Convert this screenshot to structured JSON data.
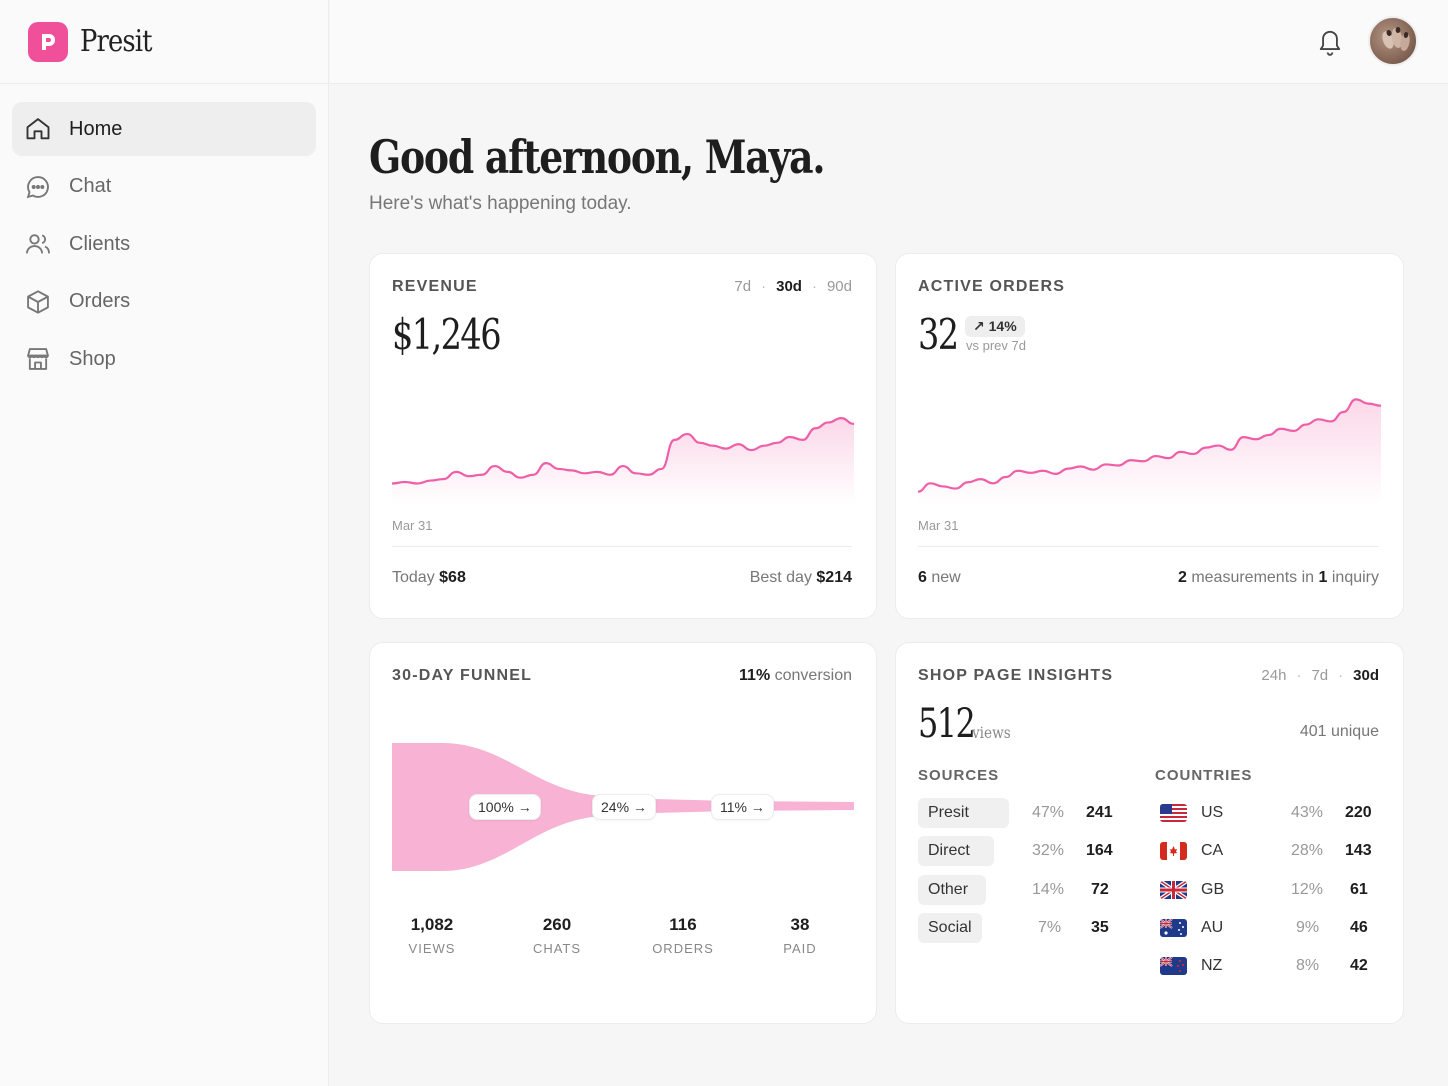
{
  "app": {
    "name": "Presit"
  },
  "nav": {
    "items": [
      {
        "label": "Home",
        "icon": "home-icon",
        "active": true
      },
      {
        "label": "Chat",
        "icon": "chat-icon"
      },
      {
        "label": "Clients",
        "icon": "users-icon"
      },
      {
        "label": "Orders",
        "icon": "box-icon"
      },
      {
        "label": "Shop",
        "icon": "store-icon"
      }
    ]
  },
  "header": {
    "greeting": "Good afternoon, Maya.",
    "subtitle": "Here's what's happening today."
  },
  "revenue": {
    "title": "REVENUE",
    "ranges": [
      "7d",
      "30d",
      "90d"
    ],
    "selected_range": "30d",
    "value": "$1,246",
    "start_label": "Mar 31",
    "today_label": "Today",
    "today_value": "$68",
    "best_label": "Best day",
    "best_value": "$214"
  },
  "orders": {
    "title": "ACTIVE ORDERS",
    "value": "32",
    "delta": "14%",
    "delta_caption": "vs prev 7d",
    "start_label": "Mar 31",
    "new_count": "6",
    "new_label": "new",
    "measurements_count": "2",
    "measurements_label": "measurements in",
    "inquiry_count": "1",
    "inquiry_label": "inquiry"
  },
  "funnel": {
    "title": "30-DAY FUNNEL",
    "conversion_value": "11%",
    "conversion_label": "conversion",
    "steps": [
      {
        "label": "100% →"
      },
      {
        "label": "24% →"
      },
      {
        "label": "11% →"
      }
    ],
    "stats": [
      {
        "value": "1,082",
        "label": "VIEWS"
      },
      {
        "value": "260",
        "label": "CHATS"
      },
      {
        "value": "116",
        "label": "ORDERS"
      },
      {
        "value": "38",
        "label": "PAID"
      }
    ]
  },
  "insights": {
    "title": "SHOP PAGE INSIGHTS",
    "ranges": [
      "24h",
      "7d",
      "30d"
    ],
    "selected_range": "30d",
    "views": "512",
    "views_label": "views",
    "unique": "401 unique",
    "sources_title": "SOURCES",
    "countries_title": "COUNTRIES",
    "sources": [
      {
        "name": "Presit",
        "pct": "47%",
        "count": "241"
      },
      {
        "name": "Direct",
        "pct": "32%",
        "count": "164"
      },
      {
        "name": "Other",
        "pct": "14%",
        "count": "72"
      },
      {
        "name": "Social",
        "pct": "7%",
        "count": "35"
      }
    ],
    "countries": [
      {
        "code": "US",
        "pct": "43%",
        "count": "220"
      },
      {
        "code": "CA",
        "pct": "28%",
        "count": "143"
      },
      {
        "code": "GB",
        "pct": "12%",
        "count": "61"
      },
      {
        "code": "AU",
        "pct": "9%",
        "count": "46"
      },
      {
        "code": "NZ",
        "pct": "8%",
        "count": "42"
      }
    ]
  },
  "colors": {
    "accent": "#f0509a",
    "line": "#ee5fa8",
    "fill": "#fbd3e6",
    "funnel": "#f7b2d4"
  },
  "chart_data": [
    {
      "type": "area",
      "name": "revenue-trend",
      "x_start_label": "Mar 31",
      "values": [
        10,
        11,
        10,
        12,
        13,
        18,
        15,
        16,
        22,
        18,
        14,
        16,
        24,
        20,
        19,
        17,
        18,
        16,
        22,
        17,
        16,
        20,
        40,
        44,
        38,
        36,
        34,
        37,
        33,
        36,
        38,
        42,
        40,
        48,
        52,
        55,
        51
      ]
    },
    {
      "type": "area",
      "name": "active-orders-trend",
      "x_start_label": "Mar 31",
      "values": [
        6,
        14,
        11,
        9,
        15,
        18,
        14,
        20,
        26,
        24,
        26,
        23,
        28,
        30,
        27,
        32,
        31,
        36,
        35,
        40,
        38,
        44,
        42,
        48,
        50,
        46,
        58,
        56,
        60,
        66,
        64,
        70,
        75,
        73,
        82,
        94,
        90,
        88
      ]
    }
  ]
}
